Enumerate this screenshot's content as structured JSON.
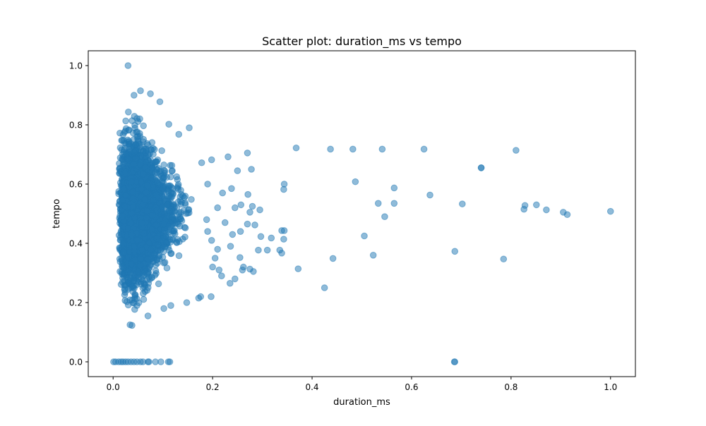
{
  "chart_data": {
    "type": "scatter",
    "title": "Scatter plot: duration_ms vs tempo",
    "xlabel": "duration_ms",
    "ylabel": "tempo",
    "xlim": [
      -0.05,
      1.05
    ],
    "ylim": [
      -0.05,
      1.05
    ],
    "xticks": [
      "0.0",
      "0.2",
      "0.4",
      "0.6",
      "0.8",
      "1.0"
    ],
    "yticks": [
      "0.0",
      "0.2",
      "0.4",
      "0.6",
      "0.8",
      "1.0"
    ],
    "grid": false,
    "legend": "none",
    "marker_color": "#1f77b4",
    "marker_alpha": 0.5,
    "dense_cluster": {
      "x_range": [
        0.0,
        0.16
      ],
      "y_range": [
        0.12,
        0.91
      ],
      "center": [
        0.05,
        0.5
      ],
      "note_count": 3500
    },
    "points": [
      [
        0.03,
        1.0
      ],
      [
        0.368,
        0.722
      ],
      [
        0.437,
        0.718
      ],
      [
        0.482,
        0.718
      ],
      [
        0.541,
        0.718
      ],
      [
        0.625,
        0.718
      ],
      [
        0.81,
        0.714
      ],
      [
        0.74,
        0.655
      ],
      [
        0.74,
        0.655
      ],
      [
        0.487,
        0.608
      ],
      [
        0.565,
        0.587
      ],
      [
        0.637,
        0.563
      ],
      [
        0.533,
        0.535
      ],
      [
        0.565,
        0.535
      ],
      [
        0.702,
        0.533
      ],
      [
        0.828,
        0.528
      ],
      [
        0.851,
        0.53
      ],
      [
        0.826,
        0.515
      ],
      [
        0.871,
        0.513
      ],
      [
        0.905,
        0.505
      ],
      [
        0.913,
        0.497
      ],
      [
        1.0,
        0.508
      ],
      [
        0.546,
        0.49
      ],
      [
        0.505,
        0.425
      ],
      [
        0.523,
        0.36
      ],
      [
        0.687,
        0.373
      ],
      [
        0.442,
        0.349
      ],
      [
        0.785,
        0.347
      ],
      [
        0.425,
        0.25
      ],
      [
        0.372,
        0.314
      ],
      [
        0.344,
        0.6
      ],
      [
        0.343,
        0.582
      ],
      [
        0.339,
        0.443
      ],
      [
        0.344,
        0.443
      ],
      [
        0.343,
        0.414
      ],
      [
        0.335,
        0.377
      ],
      [
        0.339,
        0.367
      ],
      [
        0.295,
        0.513
      ],
      [
        0.275,
        0.505
      ],
      [
        0.27,
        0.705
      ],
      [
        0.25,
        0.645
      ],
      [
        0.278,
        0.65
      ],
      [
        0.231,
        0.692
      ],
      [
        0.271,
        0.565
      ],
      [
        0.257,
        0.53
      ],
      [
        0.28,
        0.525
      ],
      [
        0.238,
        0.585
      ],
      [
        0.285,
        0.462
      ],
      [
        0.297,
        0.423
      ],
      [
        0.318,
        0.418
      ],
      [
        0.27,
        0.465
      ],
      [
        0.292,
        0.377
      ],
      [
        0.31,
        0.377
      ],
      [
        0.262,
        0.32
      ],
      [
        0.275,
        0.313
      ],
      [
        0.282,
        0.305
      ],
      [
        0.26,
        0.31
      ],
      [
        0.245,
        0.28
      ],
      [
        0.235,
        0.265
      ],
      [
        0.255,
        0.352
      ],
      [
        0.236,
        0.39
      ],
      [
        0.256,
        0.44
      ],
      [
        0.21,
        0.38
      ],
      [
        0.205,
        0.35
      ],
      [
        0.213,
        0.31
      ],
      [
        0.218,
        0.29
      ],
      [
        0.2,
        0.32
      ],
      [
        0.197,
        0.22
      ],
      [
        0.176,
        0.22
      ],
      [
        0.172,
        0.215
      ],
      [
        0.148,
        0.2
      ],
      [
        0.116,
        0.19
      ],
      [
        0.102,
        0.18
      ],
      [
        0.07,
        0.155
      ],
      [
        0.034,
        0.125
      ],
      [
        0.038,
        0.123
      ],
      [
        0.198,
        0.682
      ],
      [
        0.178,
        0.672
      ],
      [
        0.153,
        0.79
      ],
      [
        0.132,
        0.768
      ],
      [
        0.112,
        0.802
      ],
      [
        0.094,
        0.878
      ],
      [
        0.075,
        0.905
      ],
      [
        0.055,
        0.915
      ],
      [
        0.042,
        0.9
      ],
      [
        0.19,
        0.6
      ],
      [
        0.22,
        0.57
      ],
      [
        0.21,
        0.52
      ],
      [
        0.245,
        0.52
      ],
      [
        0.225,
        0.47
      ],
      [
        0.19,
        0.44
      ],
      [
        0.188,
        0.48
      ],
      [
        0.198,
        0.41
      ],
      [
        0.24,
        0.43
      ],
      [
        0.001,
        0.0
      ],
      [
        0.005,
        0.0
      ],
      [
        0.011,
        0.0
      ],
      [
        0.016,
        0.0
      ],
      [
        0.02,
        0.0
      ],
      [
        0.025,
        0.0
      ],
      [
        0.03,
        0.0
      ],
      [
        0.036,
        0.0
      ],
      [
        0.042,
        0.0
      ],
      [
        0.048,
        0.0
      ],
      [
        0.055,
        0.0
      ],
      [
        0.06,
        0.0
      ],
      [
        0.07,
        0.0
      ],
      [
        0.072,
        0.0
      ],
      [
        0.085,
        0.0
      ],
      [
        0.096,
        0.0
      ],
      [
        0.111,
        0.0
      ],
      [
        0.114,
        0.0
      ],
      [
        0.686,
        0.0
      ],
      [
        0.687,
        0.0
      ]
    ]
  }
}
